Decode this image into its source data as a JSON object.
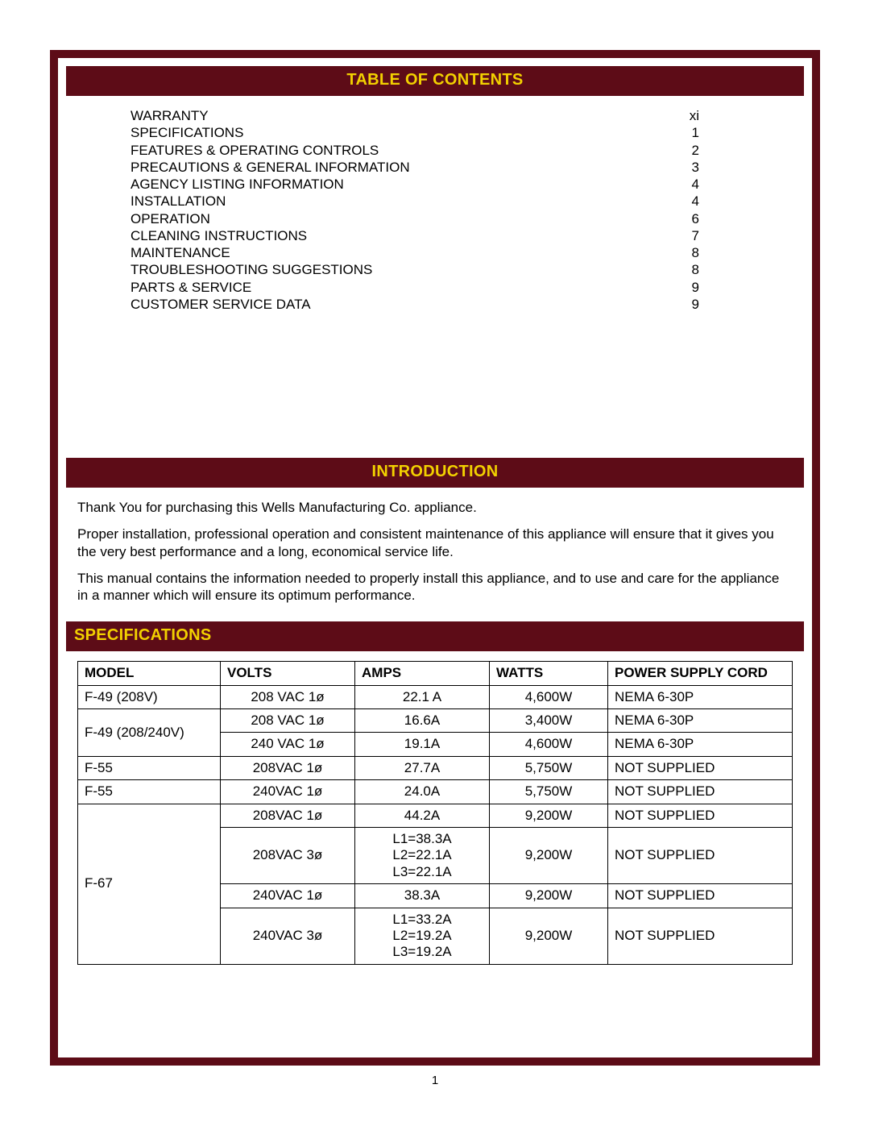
{
  "colors": {
    "frame_border": "#5d0c17",
    "header_bg": "#5d0c17",
    "header_text": "#f2d100",
    "body_text": "#000000",
    "page_bg": "#ffffff"
  },
  "headers": {
    "toc": "TABLE OF CONTENTS",
    "introduction": "INTRODUCTION",
    "specifications": "SPECIFICATIONS"
  },
  "toc": [
    {
      "label": "WARRANTY",
      "page": "xi"
    },
    {
      "label": "SPECIFICATIONS",
      "page": "1"
    },
    {
      "label": "FEATURES & OPERATING CONTROLS",
      "page": "2"
    },
    {
      "label": "PRECAUTIONS & GENERAL INFORMATION",
      "page": "3"
    },
    {
      "label": "AGENCY LISTING INFORMATION",
      "page": "4"
    },
    {
      "label": "INSTALLATION",
      "page": "4"
    },
    {
      "label": "OPERATION",
      "page": "6"
    },
    {
      "label": "CLEANING INSTRUCTIONS",
      "page": "7"
    },
    {
      "label": "MAINTENANCE",
      "page": "8"
    },
    {
      "label": "TROUBLESHOOTING SUGGESTIONS",
      "page": "8"
    },
    {
      "label": "PARTS & SERVICE",
      "page": "9"
    },
    {
      "label": "CUSTOMER SERVICE DATA",
      "page": "9"
    }
  ],
  "introduction": {
    "p1": "Thank You for purchasing this Wells Manufacturing Co. appliance.",
    "p2": "Proper installation, professional operation and consistent maintenance of this appliance will ensure that it gives you the very best performance and a long, economical service life.",
    "p3": "This manual contains the information needed to properly install this appliance, and to use and care for the appliance in a manner which will ensure its optimum performance."
  },
  "spec_table": {
    "columns": [
      "MODEL",
      "VOLTS",
      "AMPS",
      "WATTS",
      "POWER SUPPLY CORD"
    ],
    "rows": [
      {
        "model": "F-49 (208V)",
        "volts": "208 VAC  1ø",
        "amps": "22.1 A",
        "watts": "4,600W",
        "cord": "NEMA 6-30P",
        "model_rowspan": 1
      },
      {
        "model": "F-49 (208/240V)",
        "volts": "208 VAC 1ø",
        "amps": "16.6A",
        "watts": "3,400W",
        "cord": "NEMA 6-30P",
        "model_rowspan": 2
      },
      {
        "model": "",
        "volts": "240 VAC 1ø",
        "amps": "19.1A",
        "watts": "4,600W",
        "cord": "NEMA 6-30P",
        "model_rowspan": 0
      },
      {
        "model": "F-55",
        "volts": "208VAC 1ø",
        "amps": "27.7A",
        "watts": "5,750W",
        "cord": "NOT SUPPLIED",
        "model_rowspan": 1
      },
      {
        "model": "F-55",
        "volts": "240VAC 1ø",
        "amps": "24.0A",
        "watts": "5,750W",
        "cord": "NOT SUPPLIED",
        "model_rowspan": 1
      },
      {
        "model": "F-67",
        "volts": "208VAC 1ø",
        "amps": "44.2A",
        "watts": "9,200W",
        "cord": "NOT SUPPLIED",
        "model_rowspan": 4
      },
      {
        "model": "",
        "volts": "208VAC 3ø",
        "amps": "L1=38.3A\nL2=22.1A\nL3=22.1A",
        "watts": "9,200W",
        "cord": "NOT SUPPLIED",
        "model_rowspan": 0
      },
      {
        "model": "",
        "volts": "240VAC 1ø",
        "amps": "38.3A",
        "watts": "9,200W",
        "cord": "NOT SUPPLIED",
        "model_rowspan": 0
      },
      {
        "model": "",
        "volts": "240VAC 3ø",
        "amps": "L1=33.2A\nL2=19.2A\nL3=19.2A",
        "watts": "9,200W",
        "cord": "NOT SUPPLIED",
        "model_rowspan": 0
      }
    ]
  },
  "page_number": "1"
}
